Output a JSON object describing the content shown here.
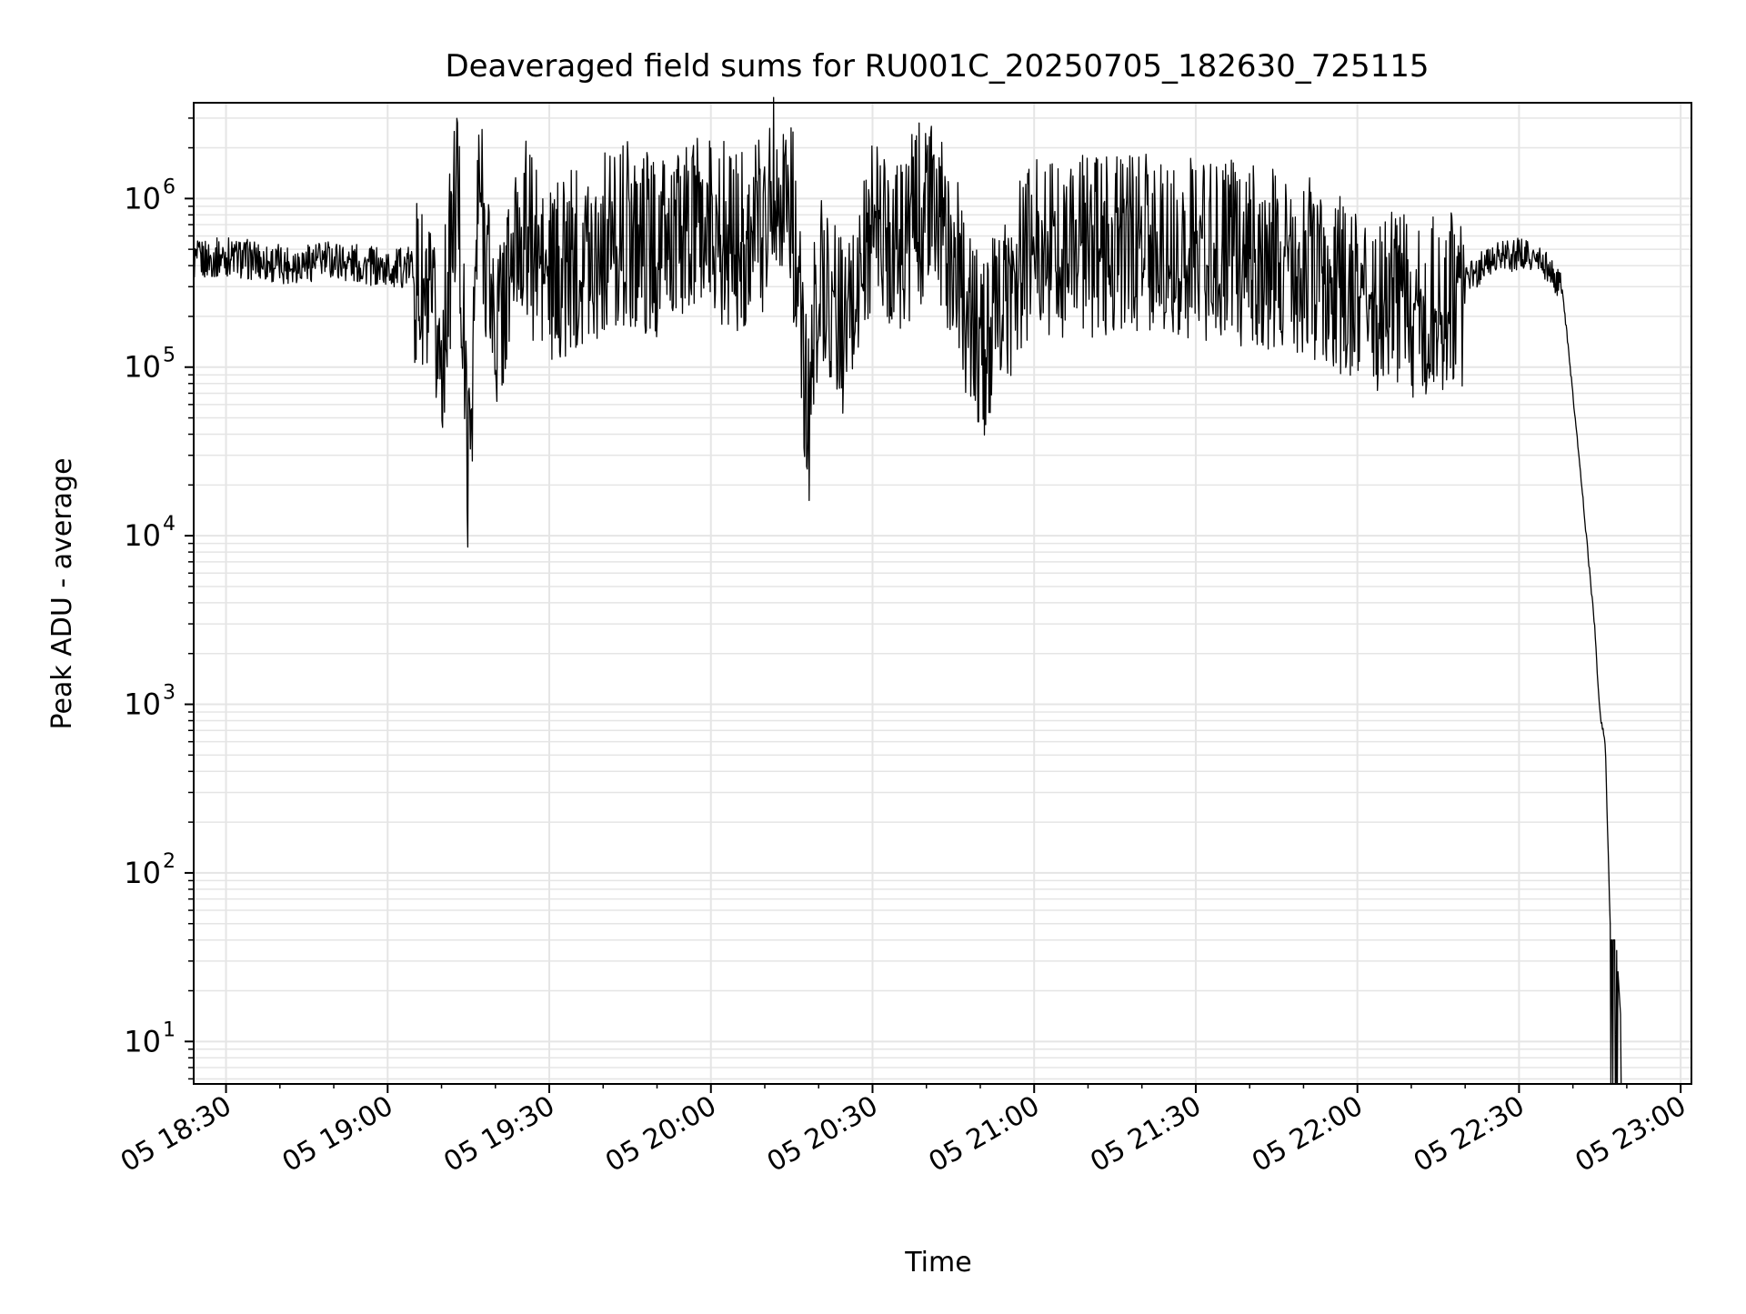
{
  "chart_data": {
    "type": "line",
    "title": "Deaveraged field sums for RU001C_20250705_182630_725115",
    "xlabel": "Time",
    "ylabel": "Peak ADU - average",
    "y_scale": "log",
    "ylim": [
      5.6,
      3700000
    ],
    "xlim": [
      "05 18:24",
      "05 23:02"
    ],
    "grid": true,
    "grid_color": "#e5e5e5",
    "line_color": "#000000",
    "x_ticks": [
      "05 18:30",
      "05 19:00",
      "05 19:30",
      "05 20:00",
      "05 20:30",
      "05 21:00",
      "05 21:30",
      "05 22:00",
      "05 22:30",
      "05 23:00"
    ],
    "y_ticks": [
      {
        "base": "10",
        "exp": "1",
        "value": 10
      },
      {
        "base": "10",
        "exp": "2",
        "value": 100
      },
      {
        "base": "10",
        "exp": "3",
        "value": 1000
      },
      {
        "base": "10",
        "exp": "4",
        "value": 10000
      },
      {
        "base": "10",
        "exp": "5",
        "value": 100000
      },
      {
        "base": "10",
        "exp": "6",
        "value": 1000000
      }
    ],
    "series": [
      {
        "x": [
          "05 18:24",
          "05 18:30",
          "05 18:40",
          "05 18:50",
          "05 19:00",
          "05 19:05",
          "05 19:10",
          "05 19:13",
          "05 19:15",
          "05 19:17",
          "05 19:20",
          "05 19:25",
          "05 19:30",
          "05 19:35",
          "05 19:40",
          "05 19:45",
          "05 19:50",
          "05 20:00",
          "05 20:05",
          "05 20:10",
          "05 20:12",
          "05 20:15",
          "05 20:18",
          "05 20:20",
          "05 20:25",
          "05 20:30",
          "05 20:35",
          "05 20:40",
          "05 20:45",
          "05 20:50",
          "05 21:00",
          "05 21:10",
          "05 21:20",
          "05 21:30",
          "05 21:40",
          "05 21:50",
          "05 22:00",
          "05 22:10",
          "05 22:20",
          "05 22:25",
          "05 22:30",
          "05 22:35",
          "05 22:38",
          "05 22:40",
          "05 22:42",
          "05 22:44",
          "05 22:45",
          "05 22:46",
          "05 22:47",
          "05 22:48",
          "05 22:49"
        ],
        "y": [
          450000,
          480000,
          430000,
          460000,
          400000,
          420000,
          150000,
          1700000,
          30000,
          1600000,
          200000,
          900000,
          400000,
          600000,
          700000,
          800000,
          650000,
          900000,
          700000,
          1000000,
          1800000,
          1200000,
          55000,
          500000,
          200000,
          900000,
          700000,
          1200000,
          600000,
          150000,
          700000,
          650000,
          700000,
          650000,
          600000,
          550000,
          350000,
          300000,
          350000,
          450000,
          500000,
          420000,
          300000,
          70000,
          15000,
          3000,
          900,
          600,
          40,
          40,
          12
        ]
      }
    ]
  }
}
